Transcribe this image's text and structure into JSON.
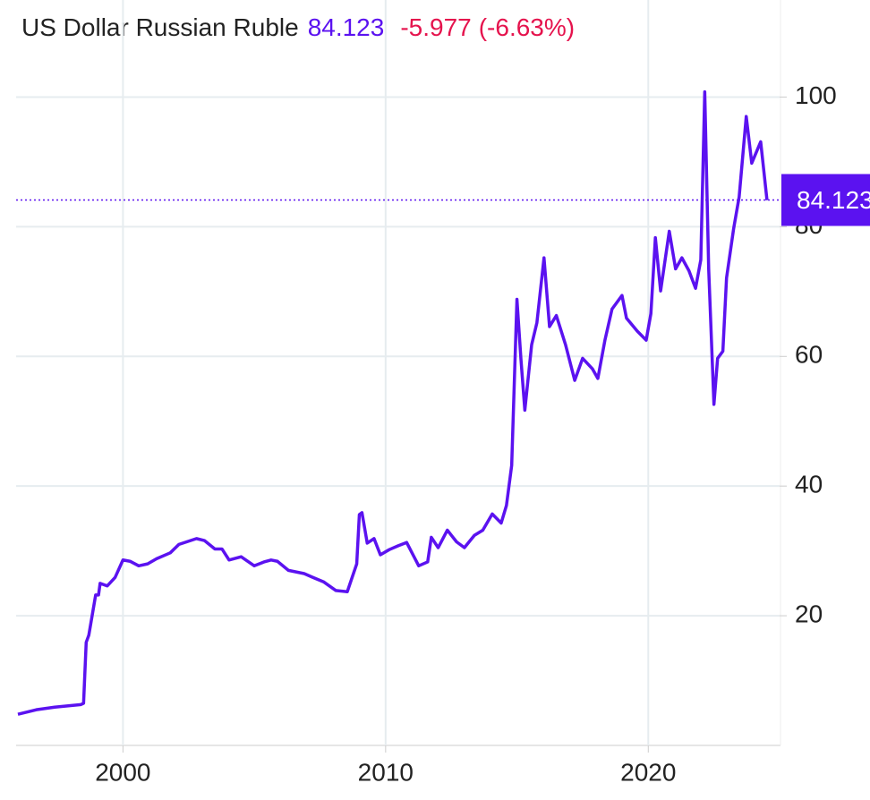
{
  "chart_data": {
    "type": "line",
    "title": "US Dollar Russian Ruble",
    "last": 84.123,
    "change": "-5.977",
    "change_pct": "(-6.63%)",
    "color": "#5b12f0",
    "change_color": "#e5134d",
    "x": [
      1996.0,
      1996.7,
      1997.4,
      1998.4,
      1998.5,
      1998.6,
      1998.7,
      1998.96,
      1999.07,
      1999.13,
      1999.4,
      1999.7,
      2000.0,
      2000.27,
      2000.6,
      2000.94,
      2001.28,
      2001.8,
      2002.13,
      2002.8,
      2003.1,
      2003.5,
      2003.77,
      2004.04,
      2004.5,
      2005.0,
      2005.37,
      2005.64,
      2005.88,
      2006.3,
      2006.9,
      2007.24,
      2007.65,
      2008.1,
      2008.54,
      2008.9,
      2009.0,
      2009.1,
      2009.3,
      2009.56,
      2009.8,
      2010.14,
      2010.48,
      2010.8,
      2011.26,
      2011.6,
      2011.74,
      2012.0,
      2012.35,
      2012.7,
      2013.0,
      2013.38,
      2013.7,
      2014.06,
      2014.4,
      2014.6,
      2014.8,
      2015.0,
      2015.15,
      2015.3,
      2015.56,
      2015.76,
      2016.03,
      2016.24,
      2016.5,
      2016.85,
      2017.2,
      2017.5,
      2017.87,
      2018.08,
      2018.35,
      2018.62,
      2019.0,
      2019.17,
      2019.58,
      2019.92,
      2020.1,
      2020.27,
      2020.47,
      2020.8,
      2021.04,
      2021.28,
      2021.55,
      2021.8,
      2022.0,
      2022.15,
      2022.3,
      2022.5,
      2022.64,
      2022.84,
      2022.98,
      2023.25,
      2023.46,
      2023.73,
      2023.94,
      2024.28,
      2024.52
    ],
    "values": [
      4.8,
      5.5,
      5.9,
      6.3,
      6.5,
      15.9,
      17,
      23.2,
      23.2,
      25,
      24.6,
      25.9,
      28.6,
      28.4,
      27.7,
      28,
      28.8,
      29.7,
      31,
      31.9,
      31.6,
      30.3,
      30.3,
      28.6,
      29.1,
      27.7,
      28.3,
      28.6,
      28.4,
      27,
      26.5,
      25.9,
      25.2,
      23.9,
      23.7,
      28,
      35.6,
      35.9,
      31.2,
      31.9,
      29.4,
      30.2,
      30.8,
      31.3,
      27.7,
      28.3,
      32.1,
      30.5,
      33.2,
      31.4,
      30.5,
      32.4,
      33.2,
      35.7,
      34.3,
      37,
      43.2,
      68.8,
      59.7,
      51.7,
      61.8,
      65.2,
      75.2,
      64.6,
      66.3,
      61.8,
      56.3,
      59.7,
      58.1,
      56.6,
      62.5,
      67.3,
      69.4,
      65.9,
      63.9,
      62.5,
      66.6,
      78.3,
      70.1,
      79.3,
      73.5,
      75.2,
      73.2,
      70.5,
      74.9,
      100.8,
      73.5,
      52.6,
      59.7,
      60.8,
      72.1,
      79.7,
      84.6,
      97,
      89.8,
      93.1,
      84.1
    ],
    "xlim": [
      1996,
      2025
    ],
    "xticks": [
      2000,
      2010,
      2020
    ],
    "ylim": [
      0,
      110
    ],
    "yticks": [
      20,
      40,
      60,
      80,
      100
    ],
    "grid": true
  }
}
